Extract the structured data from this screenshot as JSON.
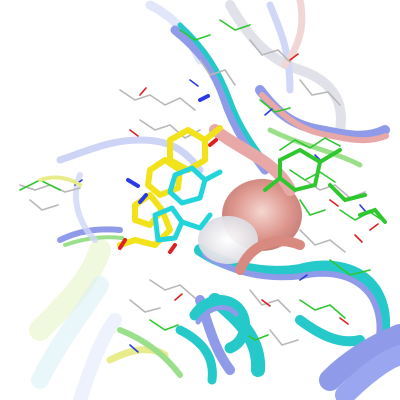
{
  "scene": {
    "kind": "molecular-structure-render",
    "background": "#ffffff",
    "palette": {
      "ribbon_blue": "#8f9be8",
      "ribbon_cyan": "#26c9c9",
      "ribbon_pink": "#e8a8a8",
      "ribbon_yellow": "#e8ec8a",
      "ribbon_green": "#9ae08a",
      "ligand_yellow": "#f2e21a",
      "ligand_cyan": "#22d4dc",
      "carbon_green": "#2ec82e",
      "carbon_gray": "#b8b8b8",
      "oxygen": "#e02020",
      "nitrogen": "#2a3ae6",
      "hydrogen": "#f0f0f0",
      "surface_pink": "#d98a80"
    }
  }
}
